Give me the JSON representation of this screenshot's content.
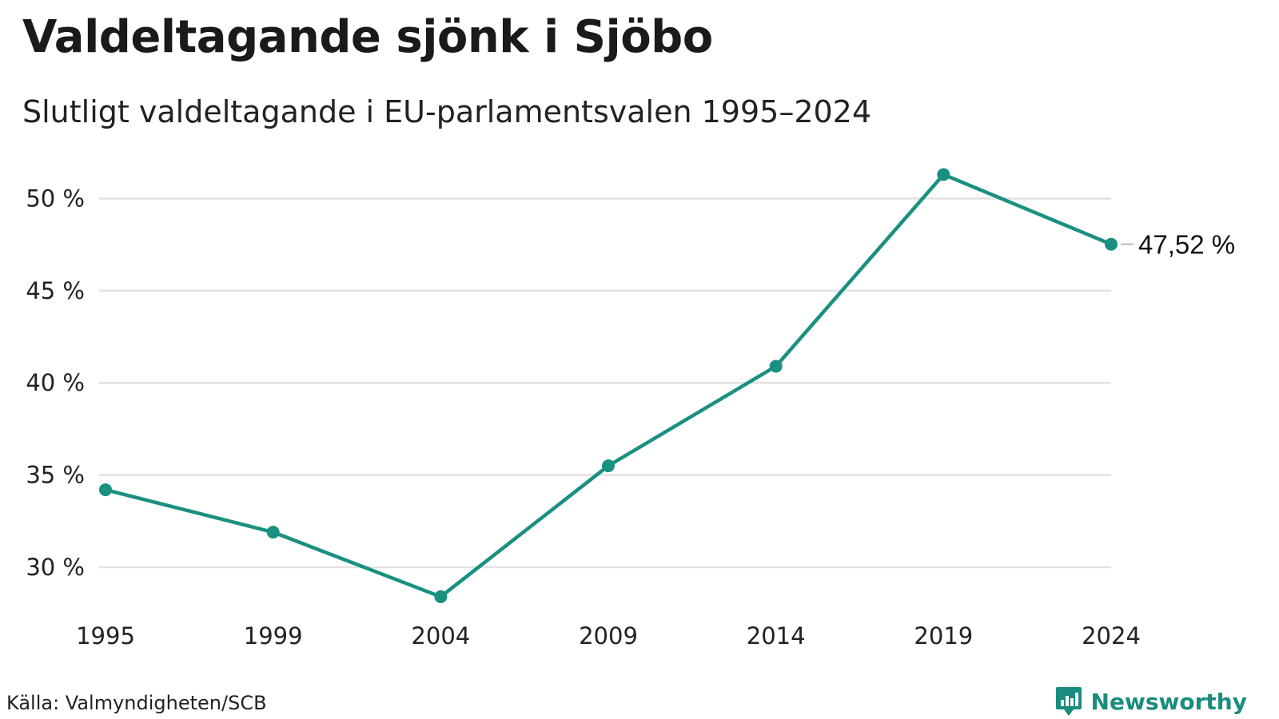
{
  "header": {
    "title": "Valdeltagande sjönk i Sjöbo",
    "subtitle": "Slutligt valdeltagande i EU-parlamentsvalen 1995–2024"
  },
  "footer": {
    "source": "Källa: Valmyndigheten/SCB",
    "brand": "Newsworthy"
  },
  "colors": {
    "line": "#1a9080",
    "grid": "#e2e2e2",
    "brand": "#1a8c7e"
  },
  "chart_data": {
    "type": "line",
    "title": "Valdeltagande sjönk i Sjöbo",
    "subtitle": "Slutligt valdeltagande i EU-parlamentsvalen 1995–2024",
    "categories": [
      "1995",
      "1999",
      "2004",
      "2009",
      "2014",
      "2019",
      "2024"
    ],
    "series": [
      {
        "values": [
          34.2,
          31.9,
          28.4,
          35.5,
          40.9,
          51.3,
          47.52
        ]
      }
    ],
    "y_ticks": [
      30,
      35,
      40,
      45,
      50
    ],
    "y_tick_labels": [
      "30 %",
      "35 %",
      "40 %",
      "45 %",
      "50 %"
    ],
    "ylim": [
      27.4,
      52.1
    ],
    "end_label": "47,52 %",
    "grid": true,
    "legend": "none"
  }
}
